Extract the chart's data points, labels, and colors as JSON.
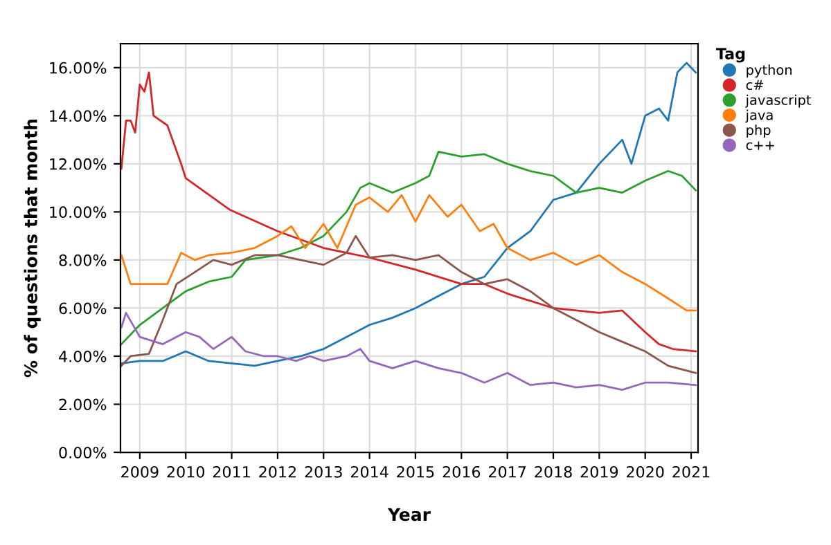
{
  "chart_data": {
    "type": "line",
    "xlabel": "Year",
    "ylabel": "% of questions that month",
    "legend_title": "Tag",
    "legend": "right",
    "grid": true,
    "marker": "none",
    "line_style": "solid",
    "xlim": [
      2008.58,
      2021.15
    ],
    "xticks": [
      2009,
      2010,
      2011,
      2012,
      2013,
      2014,
      2015,
      2016,
      2017,
      2018,
      2019,
      2020,
      2021
    ],
    "ylim": [
      0,
      17
    ],
    "yticks": [
      {
        "value": 0,
        "label": "0.00%"
      },
      {
        "value": 2,
        "label": "2.00%"
      },
      {
        "value": 4,
        "label": "4.00%"
      },
      {
        "value": 6,
        "label": "6.00%"
      },
      {
        "value": 8,
        "label": "8.00%"
      },
      {
        "value": 10,
        "label": "10.00%"
      },
      {
        "value": 12,
        "label": "12.00%"
      },
      {
        "value": 14,
        "label": "14.00%"
      },
      {
        "value": 16,
        "label": "16.00%"
      }
    ],
    "series": [
      {
        "name": "python",
        "color": "#1f77b4",
        "x": [
          2008.6,
          2009,
          2009.5,
          2010,
          2010.5,
          2011,
          2011.5,
          2012,
          2012.5,
          2013,
          2013.5,
          2014,
          2014.5,
          2015,
          2015.5,
          2016,
          2016.5,
          2017,
          2017.5,
          2018,
          2018.5,
          2019,
          2019.5,
          2019.7,
          2020,
          2020.3,
          2020.5,
          2020.7,
          2020.9,
          2021.1
        ],
        "values": [
          3.7,
          3.8,
          3.8,
          4.2,
          3.8,
          3.7,
          3.6,
          3.8,
          4.0,
          4.3,
          4.8,
          5.3,
          5.6,
          6.0,
          6.5,
          7.0,
          7.3,
          8.5,
          9.2,
          10.5,
          10.8,
          12.0,
          13.0,
          12.0,
          14.0,
          14.3,
          13.8,
          15.8,
          16.2,
          15.8
        ]
      },
      {
        "name": "c#",
        "color": "#d62728",
        "x": [
          2008.6,
          2008.7,
          2008.8,
          2008.9,
          2009.0,
          2009.1,
          2009.2,
          2009.3,
          2009.6,
          2009.9,
          2010,
          2010.95,
          2012,
          2013,
          2014,
          2015,
          2016,
          2016.5,
          2017,
          2018,
          2019,
          2019.5,
          2020,
          2020.3,
          2020.6,
          2021.1
        ],
        "values": [
          11.8,
          13.8,
          13.8,
          13.3,
          15.3,
          15.0,
          15.8,
          14.0,
          13.6,
          12.0,
          11.4,
          10.1,
          9.2,
          8.5,
          8.1,
          7.6,
          7.0,
          7.0,
          6.6,
          6.0,
          5.8,
          5.9,
          5.0,
          4.5,
          4.3,
          4.2
        ]
      },
      {
        "name": "javascript",
        "color": "#2ca02c",
        "x": [
          2008.6,
          2009,
          2009.5,
          2010,
          2010.5,
          2011,
          2011.3,
          2012,
          2012.5,
          2013,
          2013.5,
          2013.8,
          2014,
          2014.5,
          2015,
          2015.3,
          2015.5,
          2016,
          2016.5,
          2017,
          2017.5,
          2018,
          2018.5,
          2019,
          2019.5,
          2020,
          2020.5,
          2020.8,
          2021.1
        ],
        "values": [
          4.5,
          5.3,
          6.0,
          6.7,
          7.1,
          7.3,
          8.0,
          8.2,
          8.5,
          9.0,
          10.0,
          11.0,
          11.2,
          10.8,
          11.2,
          11.5,
          12.5,
          12.3,
          12.4,
          12.0,
          11.7,
          11.5,
          10.8,
          11.0,
          10.8,
          11.3,
          11.7,
          11.5,
          10.9
        ]
      },
      {
        "name": "java",
        "color": "#ff7f0e",
        "x": [
          2008.6,
          2008.8,
          2009.2,
          2009.6,
          2009.9,
          2010.2,
          2010.5,
          2011,
          2011.5,
          2012,
          2012.3,
          2012.6,
          2013,
          2013.3,
          2013.7,
          2014,
          2014.4,
          2014.7,
          2015,
          2015.3,
          2015.7,
          2016,
          2016.4,
          2016.7,
          2017,
          2017.5,
          2018,
          2018.5,
          2019,
          2019.5,
          2020,
          2020.5,
          2020.9,
          2021.1
        ],
        "values": [
          8.2,
          7.0,
          7.0,
          7.0,
          8.3,
          8.0,
          8.2,
          8.3,
          8.5,
          9.0,
          9.4,
          8.5,
          9.5,
          8.5,
          10.3,
          10.6,
          10.0,
          10.7,
          9.6,
          10.7,
          9.8,
          10.3,
          9.2,
          9.5,
          8.5,
          8.0,
          8.3,
          7.8,
          8.2,
          7.5,
          7.0,
          6.4,
          5.9,
          5.9
        ]
      },
      {
        "name": "php",
        "color": "#8c564b",
        "x": [
          2008.6,
          2008.8,
          2009.2,
          2009.5,
          2009.8,
          2010.2,
          2010.6,
          2011,
          2011.5,
          2012,
          2012.5,
          2013,
          2013.5,
          2013.7,
          2014,
          2014.5,
          2015,
          2015.5,
          2016,
          2016.5,
          2017,
          2017.5,
          2018,
          2018.5,
          2019,
          2019.5,
          2020,
          2020.5,
          2021.1
        ],
        "values": [
          3.6,
          4.0,
          4.1,
          5.5,
          7.0,
          7.5,
          8.0,
          7.8,
          8.2,
          8.2,
          8.0,
          7.8,
          8.3,
          9.0,
          8.1,
          8.2,
          8.0,
          8.2,
          7.5,
          7.0,
          7.2,
          6.7,
          6.0,
          5.5,
          5.0,
          4.6,
          4.2,
          3.6,
          3.3
        ]
      },
      {
        "name": "c++",
        "color": "#9467bd",
        "x": [
          2008.6,
          2008.7,
          2009,
          2009.5,
          2010,
          2010.3,
          2010.6,
          2011,
          2011.3,
          2011.7,
          2012,
          2012.4,
          2012.7,
          2013,
          2013.5,
          2013.8,
          2014,
          2014.5,
          2015,
          2015.5,
          2016,
          2016.5,
          2017,
          2017.5,
          2018,
          2018.5,
          2019,
          2019.5,
          2020,
          2020.5,
          2021.1
        ],
        "values": [
          5.2,
          5.8,
          4.8,
          4.5,
          5.0,
          4.8,
          4.3,
          4.8,
          4.2,
          4.0,
          4.0,
          3.8,
          4.0,
          3.8,
          4.0,
          4.3,
          3.8,
          3.5,
          3.8,
          3.5,
          3.3,
          2.9,
          3.3,
          2.8,
          2.9,
          2.7,
          2.8,
          2.6,
          2.9,
          2.9,
          2.8
        ]
      }
    ]
  }
}
